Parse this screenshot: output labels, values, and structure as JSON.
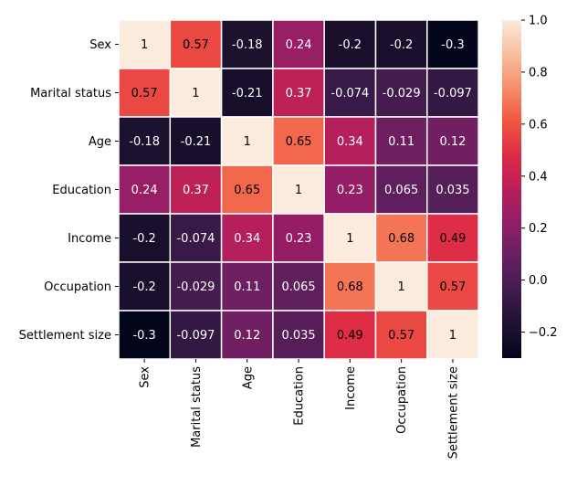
{
  "chart_data": {
    "type": "heatmap",
    "title": "",
    "xlabel": "",
    "ylabel": "",
    "categories": [
      "Sex",
      "Marital status",
      "Age",
      "Education",
      "Income",
      "Occupation",
      "Settlement size"
    ],
    "rows": [
      "Sex",
      "Marital status",
      "Age",
      "Education",
      "Income",
      "Occupation",
      "Settlement size"
    ],
    "values": [
      [
        1,
        0.57,
        -0.18,
        0.24,
        -0.2,
        -0.2,
        -0.3
      ],
      [
        0.57,
        1,
        -0.21,
        0.37,
        -0.074,
        -0.029,
        -0.097
      ],
      [
        -0.18,
        -0.21,
        1,
        0.65,
        0.34,
        0.11,
        0.12
      ],
      [
        0.24,
        0.37,
        0.65,
        1,
        0.23,
        0.065,
        0.035
      ],
      [
        -0.2,
        -0.074,
        0.34,
        0.23,
        1,
        0.68,
        0.49
      ],
      [
        -0.2,
        -0.029,
        0.11,
        0.065,
        0.68,
        1,
        0.57
      ],
      [
        -0.3,
        -0.097,
        0.12,
        0.035,
        0.49,
        0.57,
        1
      ]
    ],
    "annotations": [
      [
        "1",
        "0.57",
        "-0.18",
        "0.24",
        "-0.2",
        "-0.2",
        "-0.3"
      ],
      [
        "0.57",
        "1",
        "-0.21",
        "0.37",
        "-0.074",
        "-0.029",
        "-0.097"
      ],
      [
        "-0.18",
        "-0.21",
        "1",
        "0.65",
        "0.34",
        "0.11",
        "0.12"
      ],
      [
        "0.24",
        "0.37",
        "0.65",
        "1",
        "0.23",
        "0.065",
        "0.035"
      ],
      [
        "-0.2",
        "-0.074",
        "0.34",
        "0.23",
        "1",
        "0.68",
        "0.49"
      ],
      [
        "-0.2",
        "-0.029",
        "0.11",
        "0.065",
        "0.68",
        "1",
        "0.57"
      ],
      [
        "-0.3",
        "-0.097",
        "0.12",
        "0.035",
        "0.49",
        "0.57",
        "1"
      ]
    ],
    "colorbar": {
      "range": [
        -0.3,
        1.0
      ],
      "ticks": [
        -0.2,
        0.0,
        0.2,
        0.4,
        0.6,
        0.8,
        1.0
      ],
      "tick_labels": [
        "−0.2",
        "0.0",
        "0.2",
        "0.4",
        "0.6",
        "0.8",
        "1.0"
      ],
      "colormap": "rocket"
    },
    "colors": {
      "cell_separator": "#ffffff",
      "text_light": "#ffffff",
      "text_dark": "#000000",
      "axis": "#000000"
    }
  }
}
